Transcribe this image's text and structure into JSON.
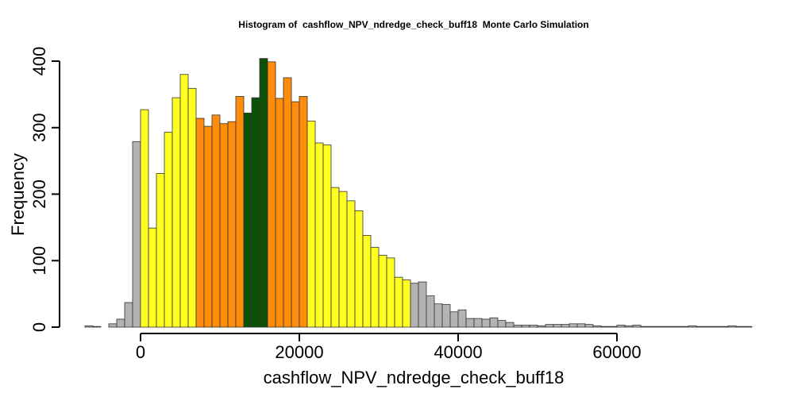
{
  "chart_data": {
    "type": "histogram",
    "title": "Histogram of  cashflow_NPV_ndredge_check_buff18  Monte Carlo Simulation",
    "xlabel": "cashflow_NPV_ndredge_check_buff18",
    "ylabel": "Frequency",
    "xlim": [
      -8000,
      76000
    ],
    "ylim": [
      0,
      400
    ],
    "x_ticks": [
      0,
      20000,
      40000,
      60000
    ],
    "x_tick_labels": [
      "0",
      "20000",
      "40000",
      "60000"
    ],
    "y_ticks": [
      0,
      100,
      200,
      300,
      400
    ],
    "y_tick_labels": [
      "0",
      "100",
      "200",
      "300",
      "400"
    ],
    "bin_start": -7000,
    "bin_width": 1000,
    "counts": [
      2,
      1,
      0,
      5,
      12,
      37,
      279,
      327,
      149,
      231,
      293,
      345,
      380,
      359,
      314,
      302,
      319,
      306,
      309,
      347,
      322,
      345,
      404,
      399,
      344,
      375,
      339,
      347,
      310,
      277,
      274,
      210,
      204,
      190,
      175,
      138,
      120,
      108,
      104,
      75,
      71,
      66,
      68,
      47,
      35,
      34,
      23,
      26,
      13,
      13,
      12,
      14,
      10,
      7,
      3,
      3,
      3,
      2,
      4,
      4,
      4,
      5,
      5,
      4,
      2,
      1,
      1,
      3,
      2,
      3,
      1,
      1,
      1,
      1,
      1,
      1,
      2,
      1,
      1,
      1,
      1,
      2,
      1,
      1
    ],
    "colors": {
      "grey": "#b3b3b3",
      "yellow": "#ffff22",
      "orange": "#ff8c0a",
      "green": "#0b5208"
    },
    "color_ranges": [
      {
        "color": "grey",
        "from": -7000,
        "to": 0
      },
      {
        "color": "yellow",
        "from": 0,
        "to": 7000
      },
      {
        "color": "orange",
        "from": 7000,
        "to": 13000
      },
      {
        "color": "green",
        "from": 13000,
        "to": 16000
      },
      {
        "color": "orange",
        "from": 16000,
        "to": 21000
      },
      {
        "color": "yellow",
        "from": 21000,
        "to": 34000
      },
      {
        "color": "grey",
        "from": 34000,
        "to": 77000
      }
    ]
  }
}
